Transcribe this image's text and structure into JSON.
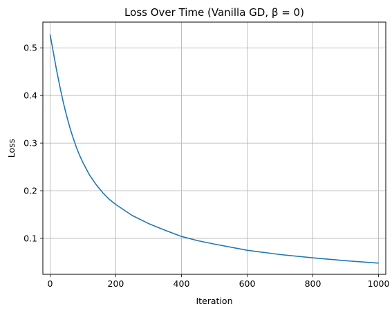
{
  "chart_data": {
    "type": "line",
    "title": "Loss Over Time (Vanilla GD, β = 0)",
    "xlabel": "Iteration",
    "ylabel": "Loss",
    "xlim": [
      -22,
      1022
    ],
    "ylim": [
      0.0245,
      0.554
    ],
    "x_ticks": [
      0,
      200,
      400,
      600,
      800,
      1000
    ],
    "y_ticks": [
      0.1,
      0.2,
      0.3,
      0.4,
      0.5
    ],
    "x_tick_labels": [
      "0",
      "200",
      "400",
      "600",
      "800",
      "1000"
    ],
    "y_tick_labels": [
      "0.1",
      "0.2",
      "0.3",
      "0.4",
      "0.5"
    ],
    "grid": true,
    "series": [
      {
        "color": "#1f77b4",
        "x": [
          0,
          10,
          20,
          30,
          40,
          50,
          60,
          70,
          80,
          90,
          100,
          120,
          140,
          160,
          180,
          200,
          250,
          300,
          350,
          400,
          450,
          500,
          600,
          700,
          800,
          900,
          1000
        ],
        "y": [
          0.528,
          0.49,
          0.452,
          0.418,
          0.386,
          0.358,
          0.333,
          0.311,
          0.291,
          0.274,
          0.259,
          0.233,
          0.213,
          0.196,
          0.182,
          0.171,
          0.148,
          0.131,
          0.117,
          0.104,
          0.095,
          0.088,
          0.075,
          0.066,
          0.059,
          0.053,
          0.048
        ]
      }
    ]
  }
}
